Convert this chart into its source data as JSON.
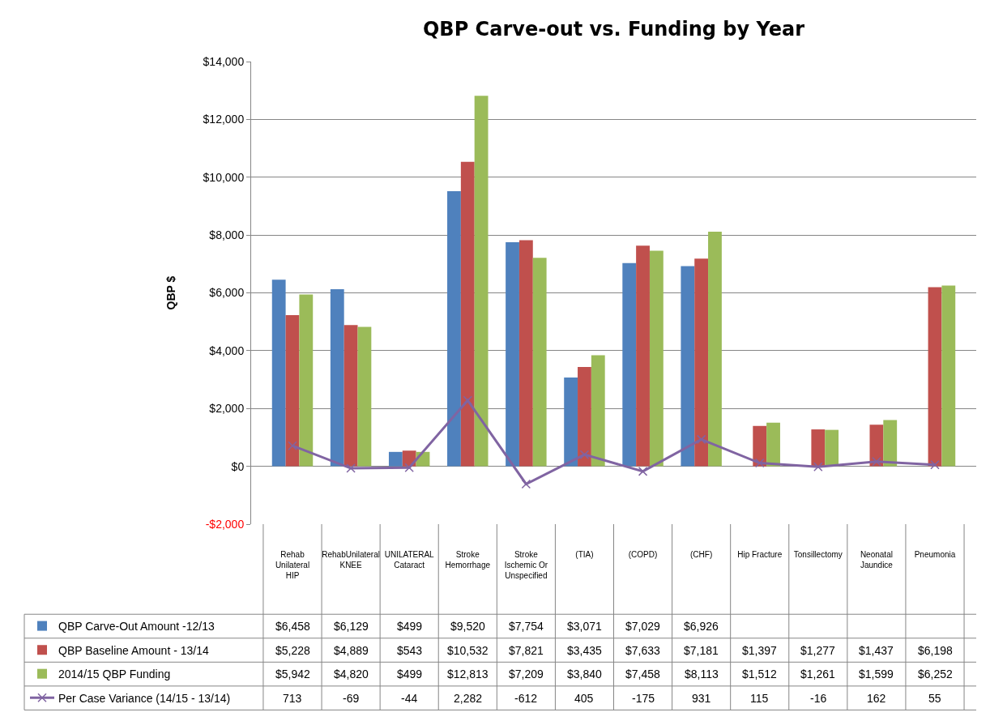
{
  "chart_data": {
    "type": "bar",
    "title": "QBP Carve-out vs. Funding by Year",
    "ylabel": "QBP $",
    "categories": [
      "Rehab Unilateral HIP",
      "RehabUnilateral KNEE",
      "UNILATERAL Cataract",
      "Stroke Hemorrhage",
      "Stroke Ischemic Or Unspecified",
      "(TIA)",
      "(COPD)",
      "(CHF)",
      "Hip Fracture",
      "Tonsillectomy",
      "Neonatal Jaundice",
      "Pneumonia"
    ],
    "series": [
      {
        "name": "QBP Carve-Out Amount -12/13",
        "color": "#4f81bd",
        "values": [
          6458,
          6129,
          499,
          9520,
          7754,
          3071,
          7029,
          6926,
          null,
          null,
          null,
          null
        ],
        "value_labels": [
          "$6,458",
          "$6,129",
          "$499",
          "$9,520",
          "$7,754",
          "$3,071",
          "$7,029",
          "$6,926",
          null,
          null,
          null,
          null
        ]
      },
      {
        "name": "QBP Baseline Amount - 13/14",
        "color": "#c0504d",
        "values": [
          5228,
          4889,
          543,
          10532,
          7821,
          3435,
          7633,
          7181,
          1397,
          1277,
          1437,
          6198
        ],
        "value_labels": [
          "$5,228",
          "$4,889",
          "$543",
          "$10,532",
          "$7,821",
          "$3,435",
          "$7,633",
          "$7,181",
          "$1,397",
          "$1,277",
          "$1,437",
          "$6,198"
        ]
      },
      {
        "name": "2014/15 QBP Funding",
        "color": "#9bbb59",
        "values": [
          5942,
          4820,
          499,
          12813,
          7209,
          3840,
          7458,
          8113,
          1512,
          1261,
          1599,
          6252
        ],
        "value_labels": [
          "$5,942",
          "$4,820",
          "$499",
          "$12,813",
          "$7,209",
          "$3,840",
          "$7,458",
          "$8,113",
          "$1,512",
          "$1,261",
          "$1,599",
          "$6,252"
        ]
      },
      {
        "name": "Per Case Variance (14/15 - 13/14)",
        "type": "line",
        "marker": "cross",
        "color": "#8064a2",
        "values": [
          713,
          -69,
          -44,
          2282,
          -612,
          405,
          -175,
          931,
          115,
          -16,
          162,
          55
        ],
        "value_labels": [
          "713",
          "-69",
          "-44",
          "2,282",
          "-612",
          "405",
          "-175",
          "931",
          "115",
          "-16",
          "162",
          "55"
        ]
      }
    ],
    "ylim": [
      -2000,
      14000
    ],
    "yticks": [
      {
        "value": -2000,
        "label": "-$2,000"
      },
      {
        "value": 0,
        "label": "$0"
      },
      {
        "value": 2000,
        "label": "$2,000"
      },
      {
        "value": 4000,
        "label": "$4,000"
      },
      {
        "value": 6000,
        "label": "$6,000"
      },
      {
        "value": 8000,
        "label": "$8,000"
      },
      {
        "value": 10000,
        "label": "$10,000"
      },
      {
        "value": 12000,
        "label": "$12,000"
      },
      {
        "value": 14000,
        "label": "$14,000"
      }
    ],
    "grid": "y",
    "legend": "bottom"
  }
}
